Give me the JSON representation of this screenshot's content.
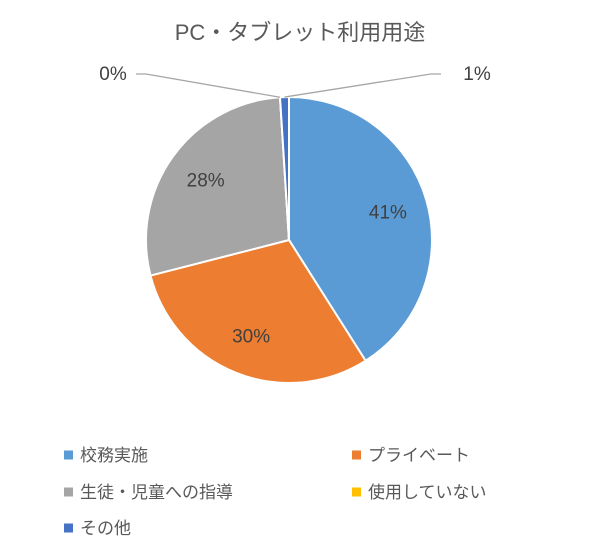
{
  "chart_data": {
    "type": "pie",
    "title": "PC・タブレット利用用途",
    "categories": [
      "校務実施",
      "プライベート",
      "生徒・児童への指導",
      "使用していない",
      "その他"
    ],
    "values": [
      41,
      30,
      28,
      0,
      1
    ],
    "labels": [
      "41%",
      "30%",
      "28%",
      "0%",
      "1%"
    ],
    "colors": [
      "#5B9BD5",
      "#ED7D31",
      "#A5A5A5",
      "#FFC000",
      "#4472C4"
    ],
    "legend_position": "bottom"
  }
}
